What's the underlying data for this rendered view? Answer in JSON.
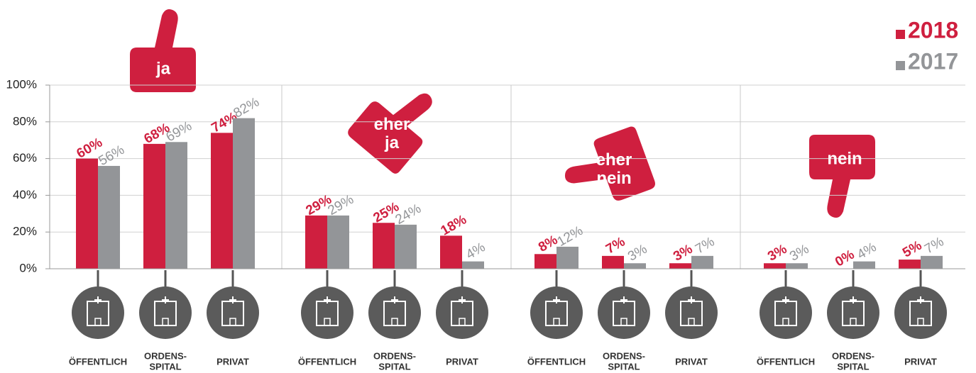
{
  "chart_data": {
    "type": "bar",
    "groups": [
      "ja",
      "eher\nja",
      "eher\nnein",
      "nein"
    ],
    "categories": [
      "ÖFFENTLICH",
      "ORDENS-\nSPITAL",
      "PRIVAT",
      "ÖFFENTLICH",
      "ORDENS-\nSPITAL",
      "PRIVAT",
      "ÖFFENTLICH",
      "ORDENS-\nSPITAL",
      "PRIVAT",
      "ÖFFENTLICH",
      "ORDENS-\nSPITAL",
      "PRIVAT"
    ],
    "series": [
      {
        "name": "2018",
        "color": "#cf1f3f",
        "values": [
          60,
          68,
          74,
          29,
          25,
          18,
          8,
          7,
          3,
          3,
          0,
          5
        ],
        "value_labels": [
          "60%",
          "68%",
          "74%",
          "29%",
          "25%",
          "18%",
          "8%",
          "7%",
          "3%",
          "3%",
          "0%",
          "5%"
        ]
      },
      {
        "name": "2017",
        "color": "#939598",
        "values": [
          56,
          69,
          82,
          29,
          24,
          4,
          12,
          3,
          7,
          3,
          4,
          7
        ],
        "value_labels": [
          "56%",
          "69%",
          "82%",
          "29%",
          "24%",
          "4%",
          "12%",
          "3%",
          "7%",
          "3%",
          "4%",
          "7%"
        ]
      }
    ],
    "ylim": [
      0,
      100
    ],
    "yticks": [
      {
        "value": 0,
        "label": "0%"
      },
      {
        "value": 20,
        "label": "20%"
      },
      {
        "value": 40,
        "label": "40%"
      },
      {
        "value": 60,
        "label": "60%"
      },
      {
        "value": 80,
        "label": "80%"
      },
      {
        "value": 100,
        "label": "100%"
      }
    ],
    "grid": true,
    "legend": "top-right"
  }
}
